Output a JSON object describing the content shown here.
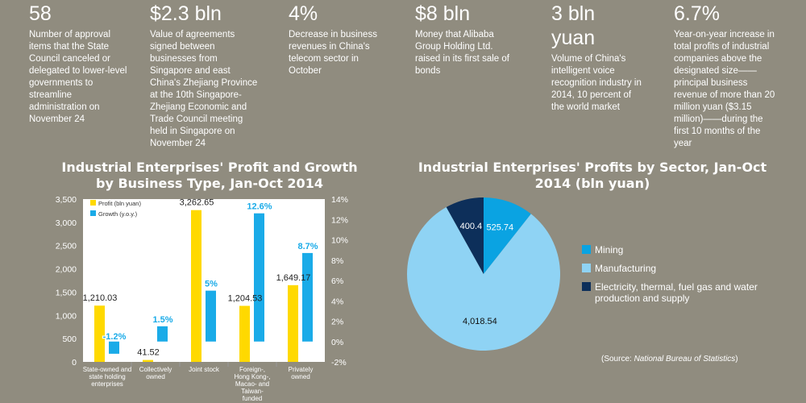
{
  "stats": [
    {
      "value": "58",
      "desc": "Number of approval items that the State Council canceled or delegated to lower-level governments to streamline administration on November 24"
    },
    {
      "value": "$2.3 bln",
      "desc": "Value of agreements signed between businesses from Singapore and east China's Zhejiang Province at the 10th Singapore-Zhejiang Economic and Trade Council meeting held in Singapore on November 24"
    },
    {
      "value": "4%",
      "desc": "Decrease in business revenues in China's telecom sector in October"
    },
    {
      "value": "$8 bln",
      "desc": "Money that Alibaba Group Holding Ltd. raised in its first sale of bonds"
    },
    {
      "value": "3 bln yuan",
      "desc": "Volume of China's intelligent voice recognition industry in 2014, 10 percent of the world market"
    },
    {
      "value": "6.7%",
      "desc": "Year-on-year increase in total profits of industrial companies above the designated size——principal business revenue of more than 20 million yuan ($3.15 million)——during the first 10 months of the year"
    }
  ],
  "chart_data": [
    {
      "type": "bar",
      "title": "Industrial Enterprises' Profit and Growth by Business Type, Jan-Oct 2014",
      "categories": [
        "State-owned and state holding enterprises",
        "Collectively owned",
        "Joint stock",
        "Foreign-, Hong Kong-, Macao- and Taiwan-funded",
        "Privately owned"
      ],
      "series": [
        {
          "name": "Profit (bln yuan)",
          "axis": "left",
          "color": "#ffd900",
          "values": [
            1210.03,
            41.52,
            3262.65,
            1204.53,
            1649.17
          ],
          "labels": [
            "1,210.03",
            "41.52",
            "3,262.65",
            "1,204.53",
            "1,649.17"
          ]
        },
        {
          "name": "Growth (y.o.y.)",
          "axis": "right",
          "color": "#1aabe8",
          "values": [
            -1.2,
            1.5,
            5,
            12.6,
            8.7
          ],
          "labels": [
            "-1.2%",
            "1.5%",
            "5%",
            "12.6%",
            "8.7%"
          ]
        }
      ],
      "ylim_left": [
        0,
        3500
      ],
      "yticks_left": [
        "0",
        "500",
        "1,000",
        "1,500",
        "2,000",
        "2,500",
        "3,000",
        "3,500"
      ],
      "ylim_right": [
        -2,
        14
      ],
      "yticks_right": [
        "-2%",
        "0%",
        "2%",
        "4%",
        "6%",
        "8%",
        "10%",
        "12%",
        "14%"
      ],
      "legend_position": "top-left"
    },
    {
      "type": "pie",
      "title": "Industrial Enterprises' Profits by Sector, Jan-Oct 2014 (bln yuan)",
      "slices": [
        {
          "name": "Mining",
          "value": 525.74,
          "label": "525.74",
          "color": "#0aa3e2"
        },
        {
          "name": "Manufacturing",
          "value": 4018.54,
          "label": "4,018.54",
          "color": "#8fd3f4"
        },
        {
          "name": "Electricity, thermal, fuel gas and water production and supply",
          "value": 400.4,
          "label": "400.4",
          "color": "#0d2f5a"
        }
      ],
      "legend_position": "right"
    }
  ],
  "source": {
    "prefix": "(Source: ",
    "name": "National Bureau of Statistics",
    "suffix": ")"
  }
}
